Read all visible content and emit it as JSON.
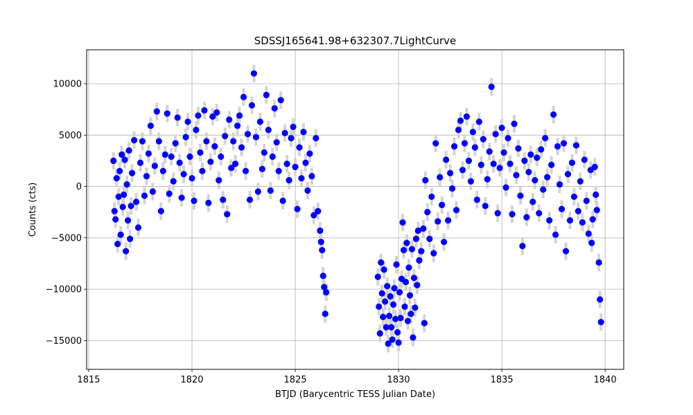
{
  "chart_data": {
    "type": "scatter",
    "title": "SDSSJ165641.98+632307.7LightCurve",
    "xlabel": "BTJD (Barycentric TESS Julian Date)",
    "ylabel": "Counts (cts)",
    "xlim": [
      1814.9,
      1840.9
    ],
    "ylim": [
      -17800,
      13300
    ],
    "xticks": [
      1815,
      1820,
      1825,
      1830,
      1835,
      1840
    ],
    "xtick_labels": [
      "1815",
      "1820",
      "1825",
      "1830",
      "1835",
      "1840"
    ],
    "yticks": [
      -15000,
      -10000,
      -5000,
      0,
      5000,
      10000
    ],
    "ytick_labels": [
      "−15000",
      "−10000",
      "−5000",
      "0",
      "5000",
      "10000"
    ],
    "grid": true,
    "marker_color": "#0000ff",
    "errorbar_color": "#d3d3d3",
    "series": [
      {
        "points": [
          [
            1816.2,
            2500
          ],
          [
            1816.25,
            -2400
          ],
          [
            1816.3,
            -3200
          ],
          [
            1816.35,
            800
          ],
          [
            1816.4,
            -5600
          ],
          [
            1816.45,
            -1000
          ],
          [
            1816.5,
            1500
          ],
          [
            1816.55,
            -4700
          ],
          [
            1816.6,
            3100
          ],
          [
            1816.65,
            -2000
          ],
          [
            1816.7,
            -800
          ],
          [
            1816.75,
            2600
          ],
          [
            1816.8,
            -6300
          ],
          [
            1816.85,
            200
          ],
          [
            1816.9,
            -3300
          ],
          [
            1816.95,
            3500
          ],
          [
            1817.0,
            -5100
          ],
          [
            1817.05,
            -1900
          ],
          [
            1817.1,
            1300
          ],
          [
            1817.2,
            4500
          ],
          [
            1817.3,
            -1500
          ],
          [
            1817.4,
            -4000
          ],
          [
            1817.5,
            2300
          ],
          [
            1817.6,
            4400
          ],
          [
            1817.7,
            -900
          ],
          [
            1817.8,
            1000
          ],
          [
            1817.9,
            3200
          ],
          [
            1818.0,
            5900
          ],
          [
            1818.1,
            -500
          ],
          [
            1818.2,
            2000
          ],
          [
            1818.3,
            7300
          ],
          [
            1818.4,
            4400
          ],
          [
            1818.5,
            -2400
          ],
          [
            1818.6,
            1500
          ],
          [
            1818.7,
            3100
          ],
          [
            1818.8,
            7100
          ],
          [
            1818.9,
            -700
          ],
          [
            1819.0,
            2900
          ],
          [
            1819.1,
            500
          ],
          [
            1819.2,
            4200
          ],
          [
            1819.3,
            6700
          ],
          [
            1819.4,
            2300
          ],
          [
            1819.5,
            -1100
          ],
          [
            1819.6,
            1200
          ],
          [
            1819.7,
            4800
          ],
          [
            1819.8,
            6300
          ],
          [
            1819.9,
            2900
          ],
          [
            1820.0,
            800
          ],
          [
            1820.1,
            -1400
          ],
          [
            1820.2,
            5500
          ],
          [
            1820.3,
            6900
          ],
          [
            1820.4,
            3300
          ],
          [
            1820.5,
            1500
          ],
          [
            1820.6,
            7400
          ],
          [
            1820.7,
            4400
          ],
          [
            1820.8,
            -1600
          ],
          [
            1820.9,
            2400
          ],
          [
            1821.0,
            6800
          ],
          [
            1821.1,
            3900
          ],
          [
            1821.2,
            7200
          ],
          [
            1821.3,
            600
          ],
          [
            1821.4,
            2900
          ],
          [
            1821.5,
            -1300
          ],
          [
            1821.6,
            4900
          ],
          [
            1821.7,
            -2700
          ],
          [
            1821.8,
            6500
          ],
          [
            1821.9,
            1800
          ],
          [
            1822.0,
            4400
          ],
          [
            1822.1,
            2200
          ],
          [
            1822.2,
            5900
          ],
          [
            1822.3,
            6900
          ],
          [
            1822.4,
            3800
          ],
          [
            1822.5,
            8700
          ],
          [
            1822.6,
            1500
          ],
          [
            1822.7,
            5100
          ],
          [
            1822.8,
            -1300
          ],
          [
            1822.9,
            7900
          ],
          [
            1823.0,
            11000
          ],
          [
            1823.1,
            4800
          ],
          [
            1823.2,
            -500
          ],
          [
            1823.3,
            6300
          ],
          [
            1823.4,
            1700
          ],
          [
            1823.5,
            3300
          ],
          [
            1823.6,
            8900
          ],
          [
            1823.7,
            5500
          ],
          [
            1823.8,
            -400
          ],
          [
            1823.9,
            2900
          ],
          [
            1824.0,
            7600
          ],
          [
            1824.1,
            4300
          ],
          [
            1824.2,
            1500
          ],
          [
            1824.3,
            8400
          ],
          [
            1824.4,
            -1400
          ],
          [
            1824.5,
            5200
          ],
          [
            1824.6,
            2200
          ],
          [
            1824.7,
            600
          ],
          [
            1824.8,
            4700
          ],
          [
            1824.9,
            5800
          ],
          [
            1825.0,
            1900
          ],
          [
            1825.1,
            -2200
          ],
          [
            1825.2,
            3800
          ],
          [
            1825.3,
            800
          ],
          [
            1825.4,
            5300
          ],
          [
            1825.5,
            2300
          ],
          [
            1825.6,
            -400
          ],
          [
            1825.7,
            3200
          ],
          [
            1825.8,
            1000
          ],
          [
            1825.9,
            -2800
          ],
          [
            1826.0,
            4700
          ],
          [
            1826.1,
            -2400
          ],
          [
            1826.2,
            -4300
          ],
          [
            1826.25,
            -5400
          ],
          [
            1826.3,
            -6200
          ],
          [
            1826.35,
            -8700
          ],
          [
            1826.4,
            -9800
          ],
          [
            1826.45,
            -12400
          ],
          [
            1826.5,
            -10300
          ],
          [
            1829.0,
            -8800
          ],
          [
            1829.05,
            -11700
          ],
          [
            1829.1,
            -14300
          ],
          [
            1829.15,
            -7400
          ],
          [
            1829.2,
            -10400
          ],
          [
            1829.25,
            -12700
          ],
          [
            1829.3,
            -8100
          ],
          [
            1829.35,
            -11200
          ],
          [
            1829.4,
            -13700
          ],
          [
            1829.45,
            -9700
          ],
          [
            1829.5,
            -15300
          ],
          [
            1829.55,
            -12600
          ],
          [
            1829.6,
            -10700
          ],
          [
            1829.65,
            -13700
          ],
          [
            1829.7,
            -14900
          ],
          [
            1829.75,
            -11500
          ],
          [
            1829.8,
            -9900
          ],
          [
            1829.85,
            -12900
          ],
          [
            1829.9,
            -7600
          ],
          [
            1829.95,
            -14200
          ],
          [
            1830.0,
            -15200
          ],
          [
            1830.05,
            -10300
          ],
          [
            1830.1,
            -12800
          ],
          [
            1830.15,
            -9000
          ],
          [
            1830.2,
            -3500
          ],
          [
            1830.25,
            -6200
          ],
          [
            1830.3,
            -11700
          ],
          [
            1830.35,
            -9300
          ],
          [
            1830.4,
            -5500
          ],
          [
            1830.45,
            -13100
          ],
          [
            1830.5,
            -7900
          ],
          [
            1830.55,
            -10600
          ],
          [
            1830.6,
            -12400
          ],
          [
            1830.65,
            -6100
          ],
          [
            1830.7,
            -14700
          ],
          [
            1830.75,
            -8900
          ],
          [
            1830.8,
            -11800
          ],
          [
            1830.85,
            -5100
          ],
          [
            1830.9,
            -9600
          ],
          [
            1830.95,
            -4300
          ],
          [
            1831.0,
            -7200
          ],
          [
            1831.1,
            -6300
          ],
          [
            1831.2,
            -4100
          ],
          [
            1831.25,
            -13300
          ],
          [
            1831.3,
            600
          ],
          [
            1831.4,
            -2500
          ],
          [
            1831.5,
            -5100
          ],
          [
            1831.6,
            -1000
          ],
          [
            1831.7,
            -6500
          ],
          [
            1831.8,
            4200
          ],
          [
            1831.9,
            -3400
          ],
          [
            1832.0,
            900
          ],
          [
            1832.1,
            -1800
          ],
          [
            1832.2,
            -5400
          ],
          [
            1832.3,
            2600
          ],
          [
            1832.4,
            -3300
          ],
          [
            1832.5,
            1300
          ],
          [
            1832.6,
            -200
          ],
          [
            1832.7,
            3900
          ],
          [
            1832.8,
            -2300
          ],
          [
            1832.9,
            5500
          ],
          [
            1833.0,
            6400
          ],
          [
            1833.1,
            1600
          ],
          [
            1833.2,
            4200
          ],
          [
            1833.3,
            6800
          ],
          [
            1833.4,
            2500
          ],
          [
            1833.5,
            500
          ],
          [
            1833.6,
            5300
          ],
          [
            1833.7,
            3800
          ],
          [
            1833.8,
            -1300
          ],
          [
            1833.9,
            6300
          ],
          [
            1834.0,
            2100
          ],
          [
            1834.1,
            4600
          ],
          [
            1834.2,
            -1900
          ],
          [
            1834.3,
            700
          ],
          [
            1834.4,
            3400
          ],
          [
            1834.5,
            9700
          ],
          [
            1834.6,
            2200
          ],
          [
            1834.7,
            5100
          ],
          [
            1834.8,
            -2600
          ],
          [
            1834.9,
            1800
          ],
          [
            1835.0,
            5700
          ],
          [
            1835.1,
            3300
          ],
          [
            1835.2,
            -100
          ],
          [
            1835.3,
            4700
          ],
          [
            1835.4,
            2200
          ],
          [
            1835.5,
            -2700
          ],
          [
            1835.6,
            6100
          ],
          [
            1835.7,
            1100
          ],
          [
            1835.8,
            3700
          ],
          [
            1835.9,
            -900
          ],
          [
            1836.0,
            -5800
          ],
          [
            1836.1,
            2500
          ],
          [
            1836.2,
            -3000
          ],
          [
            1836.3,
            1400
          ],
          [
            1836.4,
            3100
          ],
          [
            1836.5,
            -1500
          ],
          [
            1836.6,
            600
          ],
          [
            1836.7,
            2800
          ],
          [
            1836.8,
            -2600
          ],
          [
            1836.9,
            3600
          ],
          [
            1837.0,
            -300
          ],
          [
            1837.1,
            4700
          ],
          [
            1837.2,
            900
          ],
          [
            1837.3,
            -3300
          ],
          [
            1837.4,
            2100
          ],
          [
            1837.5,
            7000
          ],
          [
            1837.6,
            -4700
          ],
          [
            1837.7,
            3900
          ],
          [
            1837.8,
            200
          ],
          [
            1837.9,
            -2200
          ],
          [
            1838.0,
            4200
          ],
          [
            1838.1,
            -6300
          ],
          [
            1838.2,
            1200
          ],
          [
            1838.3,
            -3300
          ],
          [
            1838.4,
            2300
          ],
          [
            1838.5,
            -1000
          ],
          [
            1838.6,
            4000
          ],
          [
            1838.7,
            -2400
          ],
          [
            1838.8,
            500
          ],
          [
            1838.9,
            -3500
          ],
          [
            1839.0,
            2600
          ],
          [
            1839.1,
            -1400
          ],
          [
            1839.2,
            -4600
          ],
          [
            1839.3,
            1600
          ],
          [
            1839.35,
            -5500
          ],
          [
            1839.4,
            -3200
          ],
          [
            1839.5,
            1900
          ],
          [
            1839.55,
            -800
          ],
          [
            1839.6,
            -2300
          ],
          [
            1839.7,
            -7400
          ],
          [
            1839.75,
            -11000
          ],
          [
            1839.8,
            -13200
          ]
        ]
      }
    ]
  }
}
